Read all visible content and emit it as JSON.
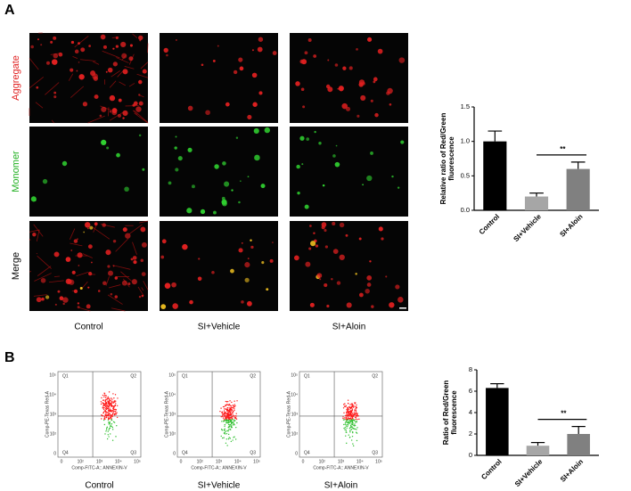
{
  "panel_a": {
    "label": "A",
    "row_labels": [
      "Aggregate",
      "Monomer",
      "Merge"
    ],
    "column_labels": [
      "Control",
      "SI+Vehicle",
      "SI+Aloin"
    ]
  },
  "panel_b": {
    "label": "B",
    "column_labels": [
      "Control",
      "SI+Vehicle",
      "SI+Aloin"
    ],
    "flow_plot": {
      "quadrants": [
        "Q1",
        "Q2",
        "Q3",
        "Q4"
      ],
      "x_label": "Comp-FITC-A:: ANNEXIN-V",
      "y_label": "Comp-PE-Texas Red-A",
      "x_ticks": [
        "0",
        "10²",
        "10³",
        "10⁴",
        "10⁵"
      ],
      "y_ticks": [
        "0",
        "10²",
        "10³",
        "10⁴",
        "10⁵"
      ]
    }
  },
  "chart_data": [
    {
      "type": "bar",
      "ylabel": [
        "Relative ratio of Red/Green",
        "fluorescence"
      ],
      "categories": [
        "Control",
        "SI+Vehicle",
        "SI+Aloin"
      ],
      "values": [
        1.0,
        0.2,
        0.6
      ],
      "errors": [
        0.15,
        0.05,
        0.1
      ],
      "colors": [
        "#000000",
        "#a6a6a6",
        "#808080"
      ],
      "ylim": [
        0,
        1.5
      ],
      "yticks": [
        {
          "value": 0,
          "label": "0.0"
        },
        0.5,
        {
          "value": 1,
          "label": "1.0"
        },
        1.5
      ],
      "annotation": "**"
    },
    {
      "type": "bar",
      "ylabel": [
        "Ratio of Red/Green",
        "fluorescence"
      ],
      "categories": [
        "Control",
        "SI+Vehicle",
        "SI+Aloin"
      ],
      "values": [
        6.3,
        0.9,
        2.0
      ],
      "errors": [
        0.4,
        0.3,
        0.7
      ],
      "colors": [
        "#000000",
        "#a6a6a6",
        "#808080"
      ],
      "ylim": [
        0,
        8
      ],
      "yticks": [
        0,
        2,
        4,
        6,
        8
      ],
      "annotation": "**"
    }
  ]
}
